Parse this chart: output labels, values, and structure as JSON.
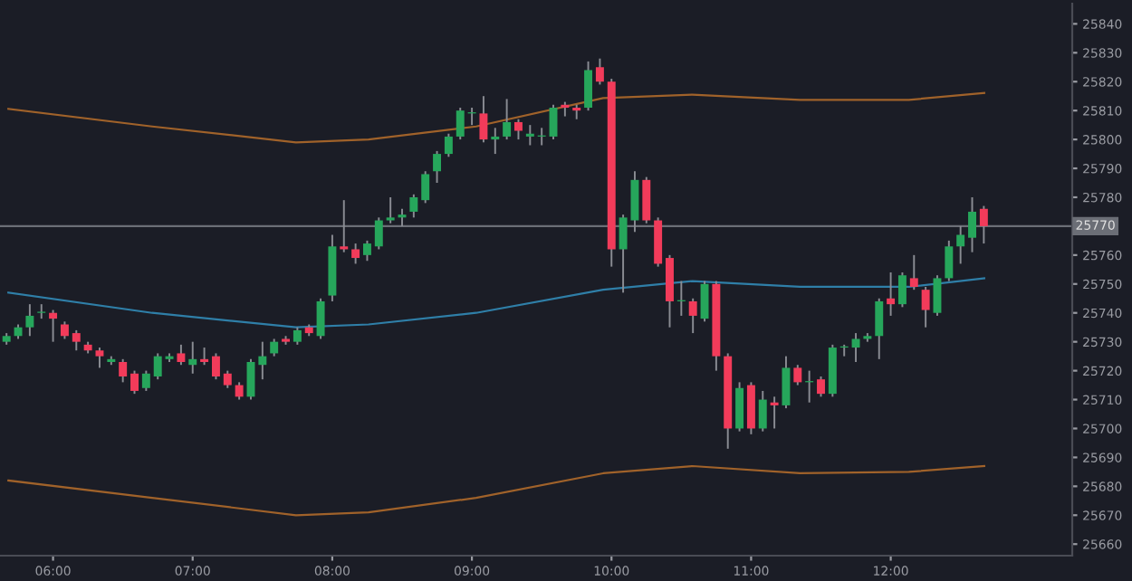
{
  "chart_data": {
    "type": "candlestick",
    "x": [
      5.6667,
      5.75,
      5.8333,
      5.9167,
      6,
      6.0833,
      6.1667,
      6.25,
      6.3333,
      6.4167,
      6.5,
      6.5833,
      6.6667,
      6.75,
      6.8333,
      6.9167,
      7,
      7.0833,
      7.1667,
      7.25,
      7.3333,
      7.4167,
      7.5,
      7.5833,
      7.6667,
      7.75,
      7.8333,
      7.9167,
      8,
      8.0833,
      8.1667,
      8.25,
      8.3333,
      8.4167,
      8.5,
      8.5833,
      8.6667,
      8.75,
      8.8333,
      8.9167,
      9,
      9.0833,
      9.1667,
      9.25,
      9.3333,
      9.4167,
      9.5,
      9.5833,
      9.6667,
      9.75,
      9.8333,
      9.9167,
      10,
      10.0833,
      10.1667,
      10.25,
      10.3333,
      10.4167,
      10.5,
      10.5833,
      10.6667,
      10.75,
      10.8333,
      10.9167,
      11,
      11.0833,
      11.1667,
      11.25,
      11.3333,
      11.4167,
      11.5,
      11.5833,
      11.6667,
      11.75,
      11.8333,
      11.9167,
      12,
      12.0833,
      12.1667,
      12.25,
      12.3333,
      12.4167,
      12.5,
      12.5833,
      12.6667
    ],
    "ohlc": [
      [
        25730,
        25733,
        25729,
        25732
      ],
      [
        25732,
        25736,
        25731,
        25735
      ],
      [
        25735,
        25743,
        25732,
        25739
      ],
      [
        25740,
        25743,
        25738,
        25740
      ],
      [
        25740,
        25741,
        25730,
        25738
      ],
      [
        25736,
        25737,
        25731,
        25732
      ],
      [
        25733,
        25734,
        25727,
        25730
      ],
      [
        25729,
        25730,
        25726,
        25727
      ],
      [
        25727,
        25728,
        25721,
        25725
      ],
      [
        25723,
        25725,
        25722,
        25724
      ],
      [
        25723,
        25724,
        25716,
        25718
      ],
      [
        25719,
        25720,
        25712,
        25713
      ],
      [
        25714,
        25720,
        25713,
        25719
      ],
      [
        25718,
        25726,
        25717,
        25725
      ],
      [
        25724,
        25726,
        25723,
        25725
      ],
      [
        25726,
        25729,
        25722,
        25723
      ],
      [
        25722,
        25730,
        25719,
        25724
      ],
      [
        25724,
        25728,
        25722,
        25723
      ],
      [
        25725,
        25726,
        25717,
        25718
      ],
      [
        25719,
        25720,
        25714,
        25715
      ],
      [
        25715,
        25716,
        25710,
        25711
      ],
      [
        25711,
        25724,
        25710,
        25723
      ],
      [
        25722,
        25730,
        25717,
        25725
      ],
      [
        25726,
        25731,
        25725,
        25730
      ],
      [
        25731,
        25732,
        25729,
        25730
      ],
      [
        25730,
        25735,
        25729,
        25734
      ],
      [
        25735,
        25736,
        25732,
        25733
      ],
      [
        25732,
        25745,
        25731,
        25744
      ],
      [
        25746,
        25767,
        25744,
        25763
      ],
      [
        25763,
        25779,
        25761,
        25762
      ],
      [
        25762,
        25764,
        25757,
        25759
      ],
      [
        25760,
        25765,
        25758,
        25764
      ],
      [
        25763,
        25773,
        25762,
        25772
      ],
      [
        25772,
        25780,
        25771,
        25773
      ],
      [
        25773,
        25776,
        25770,
        25774
      ],
      [
        25775,
        25781,
        25773,
        25780
      ],
      [
        25779,
        25789,
        25778,
        25788
      ],
      [
        25789,
        25796,
        25785,
        25795
      ],
      [
        25795,
        25802,
        25794,
        25801
      ],
      [
        25801,
        25811,
        25800,
        25810
      ],
      [
        25809,
        25811,
        25805,
        25809
      ],
      [
        25809,
        25815,
        25799,
        25800
      ],
      [
        25800,
        25804,
        25795,
        25801
      ],
      [
        25801,
        25814,
        25800,
        25806
      ],
      [
        25806,
        25807,
        25800,
        25803
      ],
      [
        25801,
        25805,
        25798,
        25802
      ],
      [
        25801,
        25804,
        25798,
        25801
      ],
      [
        25801,
        25812,
        25800,
        25811
      ],
      [
        25812,
        25813,
        25808,
        25811
      ],
      [
        25811,
        25812,
        25807,
        25810
      ],
      [
        25811,
        25827,
        25810,
        25824
      ],
      [
        25825,
        25828,
        25819,
        25820
      ],
      [
        25820,
        25821,
        25756,
        25762
      ],
      [
        25762,
        25774,
        25747,
        25773
      ],
      [
        25772,
        25789,
        25768,
        25786
      ],
      [
        25786,
        25787,
        25771,
        25772
      ],
      [
        25772,
        25773,
        25756,
        25757
      ],
      [
        25759,
        25760,
        25735,
        25744
      ],
      [
        25744,
        25751,
        25739,
        25744
      ],
      [
        25744,
        25745,
        25733,
        25739
      ],
      [
        25738,
        25751,
        25737,
        25750
      ],
      [
        25750,
        25751,
        25720,
        25725
      ],
      [
        25725,
        25726,
        25693,
        25700
      ],
      [
        25700,
        25716,
        25699,
        25714
      ],
      [
        25715,
        25716,
        25698,
        25700
      ],
      [
        25700,
        25713,
        25699,
        25710
      ],
      [
        25709,
        25711,
        25700,
        25708
      ],
      [
        25708,
        25725,
        25707,
        25721
      ],
      [
        25721,
        25722,
        25715,
        25716
      ],
      [
        25716,
        25720,
        25709,
        25716
      ],
      [
        25717,
        25718,
        25711,
        25712
      ],
      [
        25712,
        25729,
        25711,
        25728
      ],
      [
        25728,
        25729,
        25725,
        25728
      ],
      [
        25728,
        25733,
        25723,
        25731
      ],
      [
        25731,
        25733,
        25730,
        25732
      ],
      [
        25732,
        25745,
        25724,
        25744
      ],
      [
        25745,
        25754,
        25739,
        25743
      ],
      [
        25743,
        25754,
        25742,
        25753
      ],
      [
        25752,
        25760,
        25748,
        25749
      ],
      [
        25748,
        25749,
        25735,
        25741
      ],
      [
        25740,
        25753,
        25739,
        25752
      ],
      [
        25752,
        25765,
        25751,
        25763
      ],
      [
        25763,
        25770,
        25757,
        25767
      ],
      [
        25766,
        25780,
        25761,
        25775
      ],
      [
        25776,
        25777,
        25764,
        25770
      ]
    ],
    "colors": [
      "#26a65b",
      "#26a65b",
      "#26a65b",
      "#26a65b",
      "#f23b5a",
      "#f23b5a",
      "#f23b5a",
      "#f23b5a",
      "#f23b5a",
      "#26a65b",
      "#f23b5a",
      "#f23b5a",
      "#26a65b",
      "#26a65b",
      "#26a65b",
      "#f23b5a",
      "#26a65b",
      "#f23b5a",
      "#f23b5a",
      "#f23b5a",
      "#f23b5a",
      "#26a65b",
      "#26a65b",
      "#26a65b",
      "#f23b5a",
      "#26a65b",
      "#f23b5a",
      "#26a65b",
      "#26a65b",
      "#f23b5a",
      "#f23b5a",
      "#26a65b",
      "#26a65b",
      "#26a65b",
      "#26a65b",
      "#26a65b",
      "#26a65b",
      "#26a65b",
      "#26a65b",
      "#26a65b",
      "#26a65b",
      "#f23b5a",
      "#26a65b",
      "#26a65b",
      "#f23b5a",
      "#26a65b",
      "#26a65b",
      "#26a65b",
      "#f23b5a",
      "#f23b5a",
      "#26a65b",
      "#f23b5a",
      "#f23b5a",
      "#26a65b",
      "#26a65b",
      "#f23b5a",
      "#f23b5a",
      "#f23b5a",
      "#26a65b",
      "#f23b5a",
      "#26a65b",
      "#f23b5a",
      "#f23b5a",
      "#26a65b",
      "#f23b5a",
      "#26a65b",
      "#f23b5a",
      "#26a65b",
      "#f23b5a",
      "#26a65b",
      "#f23b5a",
      "#26a65b",
      "#26a65b",
      "#26a65b",
      "#26a65b",
      "#26a65b",
      "#f23b5a",
      "#26a65b",
      "#f23b5a",
      "#f23b5a",
      "#26a65b",
      "#26a65b",
      "#26a65b",
      "#26a65b",
      "#f23b5a"
    ],
    "series": [
      {
        "type": "line",
        "color": "#a0622a",
        "x": [
          5.68,
          6.71,
          7.74,
          8.26,
          9.03,
          9.94,
          10.58,
          11.35,
          12.13,
          12.67
        ],
        "values": [
          25810.6,
          25804.5,
          25799,
          25800,
          25804.5,
          25814.3,
          25815.5,
          25813.7,
          25813.7,
          25816.1
        ]
      },
      {
        "type": "line",
        "color": "#2f7fa8",
        "x": [
          5.68,
          6.71,
          7.74,
          8.26,
          9.03,
          9.94,
          10.58,
          11.35,
          12.13,
          12.67
        ],
        "values": [
          25747,
          25740,
          25735,
          25736,
          25740,
          25748,
          25751,
          25749,
          25749,
          25752
        ]
      },
      {
        "type": "line",
        "color": "#a0622a",
        "x": [
          5.68,
          6.71,
          7.74,
          8.26,
          9.03,
          9.94,
          10.58,
          11.35,
          12.13,
          12.67
        ],
        "values": [
          25682,
          25676,
          25670,
          25671,
          25676,
          25684.5,
          25687,
          25684.5,
          25685,
          25687
        ]
      }
    ],
    "ref_lines": [
      {
        "axis": "y",
        "value": 25770,
        "label": "25770",
        "color": "#6b6e76"
      }
    ],
    "xlim": [
      5.62,
      13.3
    ],
    "ylim": [
      25656,
      25847
    ],
    "xticks": [
      {
        "value": 6,
        "label": "06:00"
      },
      {
        "value": 7,
        "label": "07:00"
      },
      {
        "value": 8,
        "label": "08:00"
      },
      {
        "value": 9,
        "label": "09:00"
      },
      {
        "value": 10,
        "label": "10:00"
      },
      {
        "value": 11,
        "label": "11:00"
      },
      {
        "value": 12,
        "label": "12:00"
      }
    ],
    "yticks": [
      25660,
      25670,
      25680,
      25690,
      25700,
      25710,
      25720,
      25730,
      25740,
      25750,
      25760,
      25780,
      25790,
      25800,
      25810,
      25820,
      25830,
      25840
    ],
    "grid": false,
    "legend": false
  }
}
